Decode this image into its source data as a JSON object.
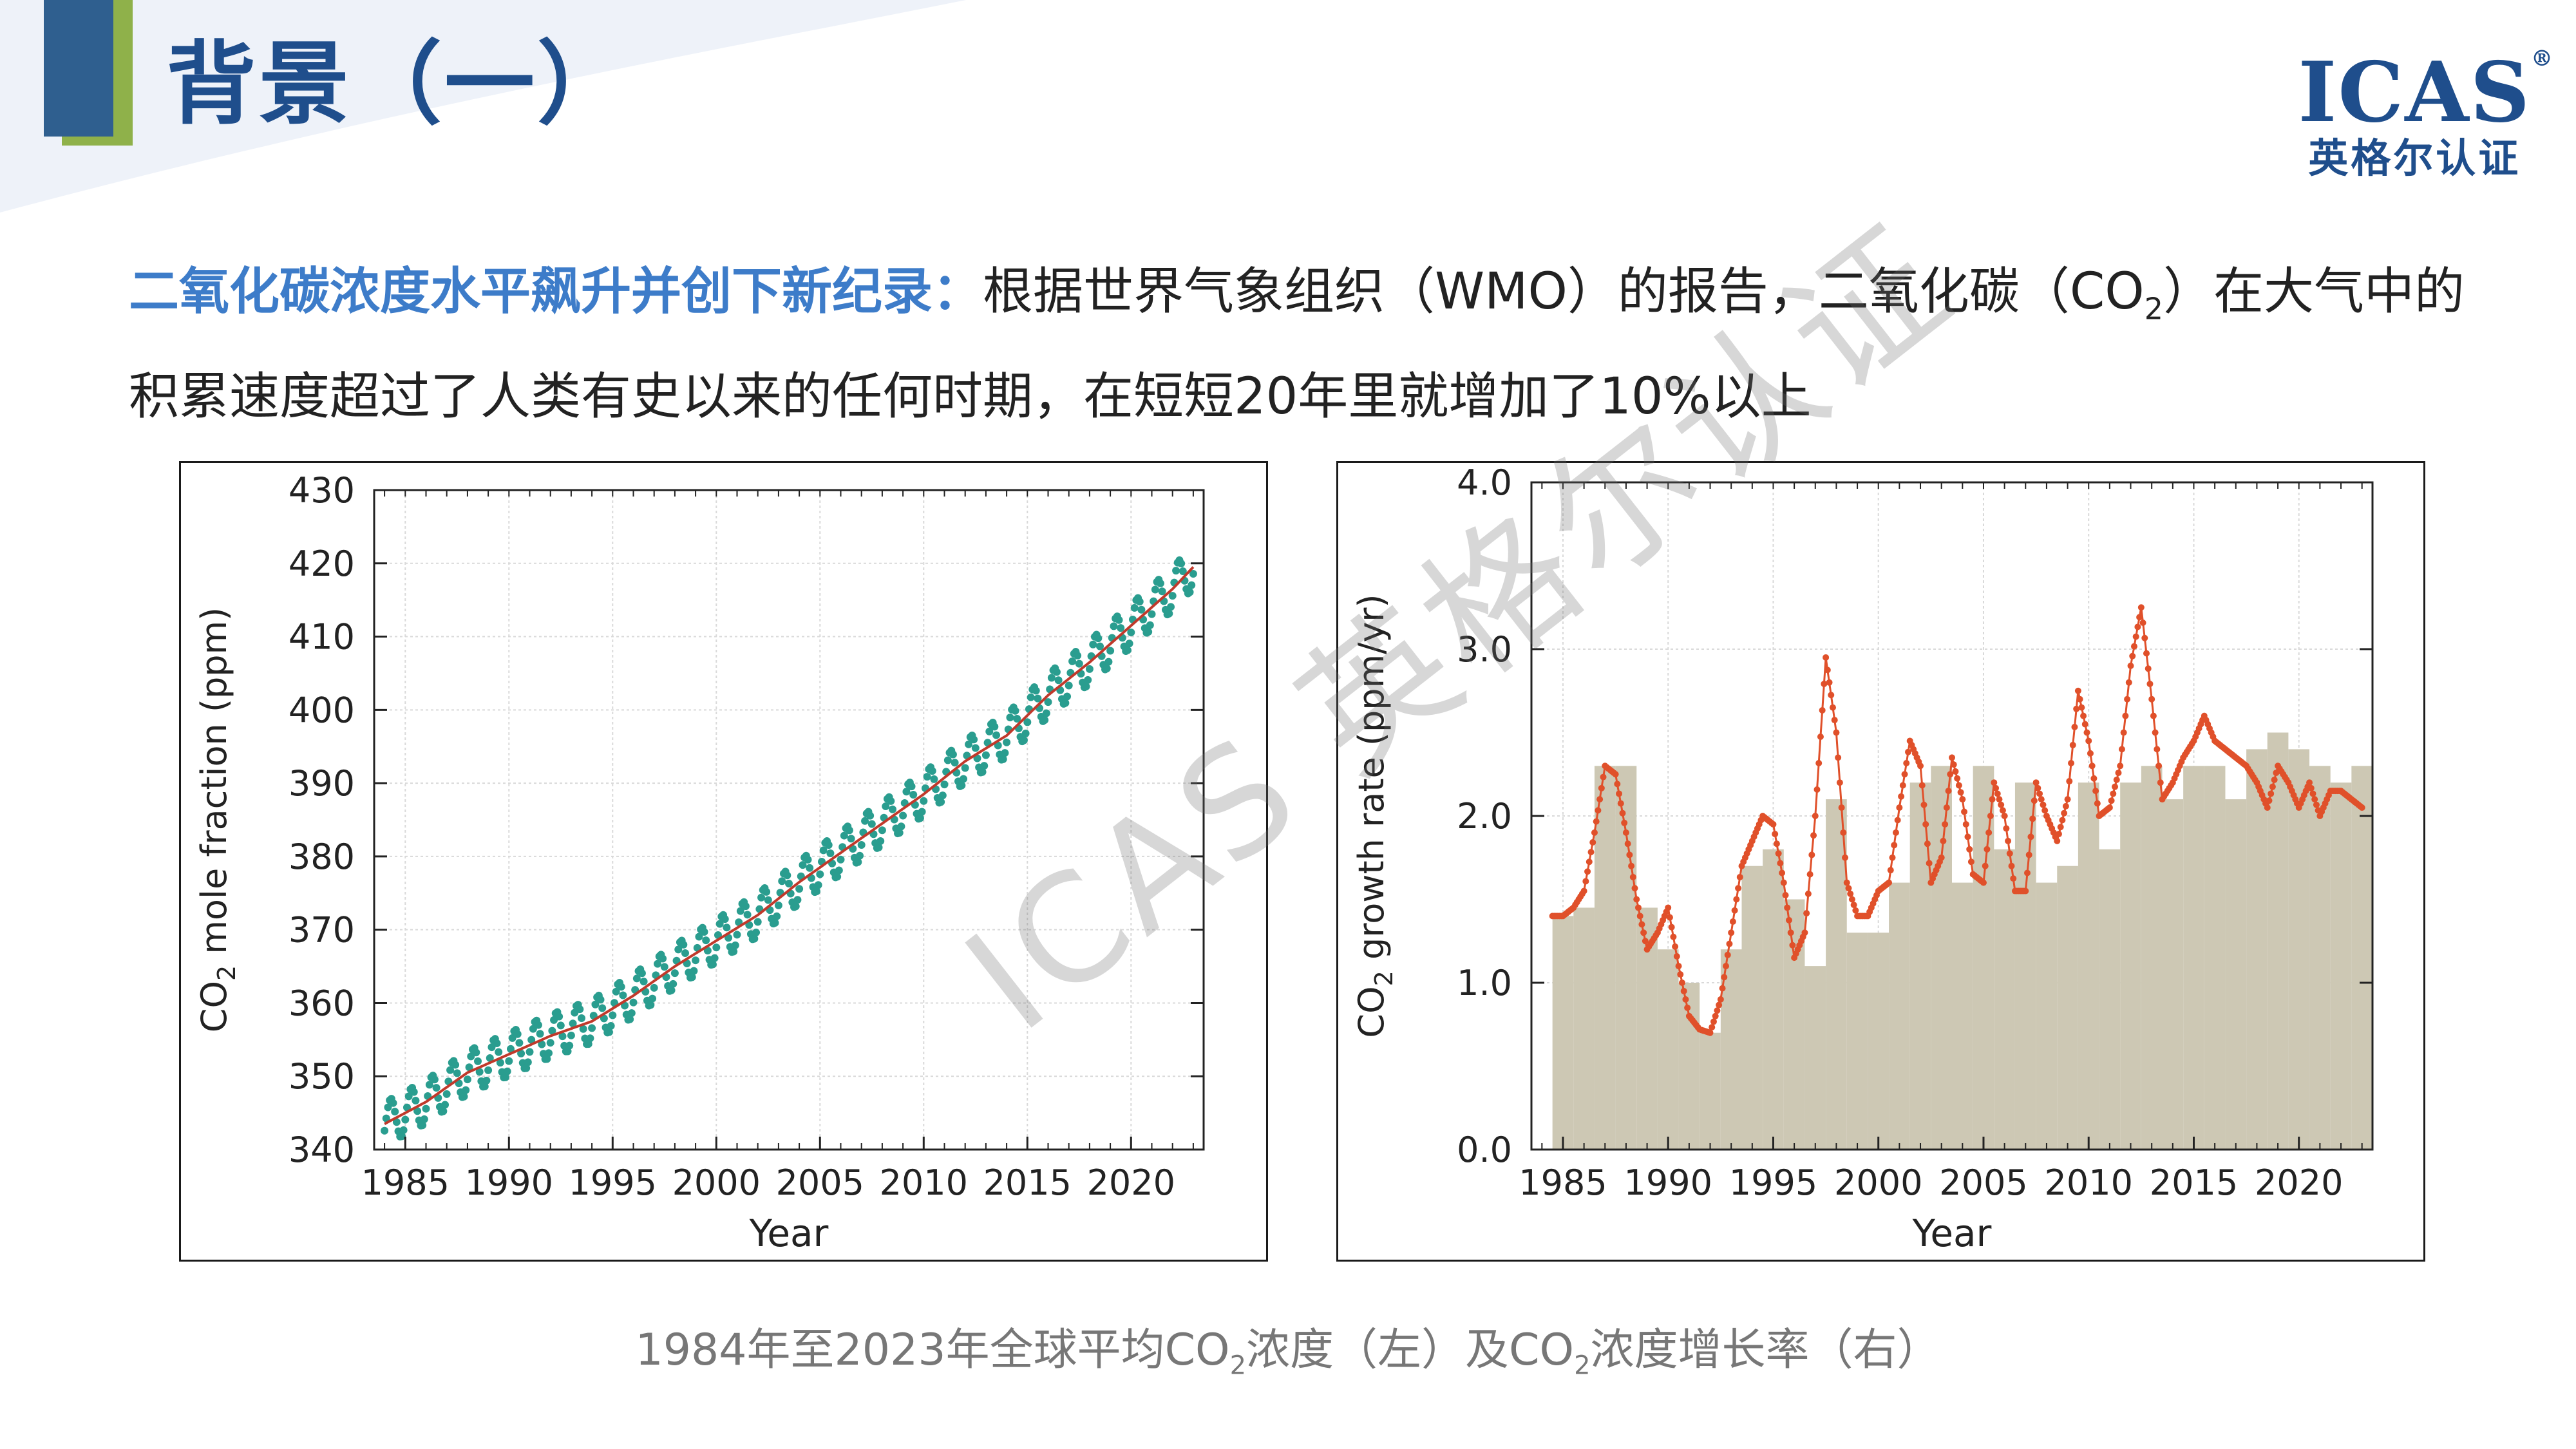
{
  "header": {
    "title": "背景（一）"
  },
  "logo": {
    "mark": "ICAS",
    "registered": "®",
    "subtitle": "英格尔认证"
  },
  "intro": {
    "lead": "二氧化碳浓度水平飙升并创下新纪录：",
    "text_before_sub": "根据世界气象组织（WMO）的报告，二氧化碳（CO",
    "sub": "2",
    "text_after_sub": "）在大气中的积累速度超过了人类有史以来的任何时期，在短短20年里就增加了10%以上"
  },
  "caption": {
    "part1": "1984年至2023年全球平均CO",
    "sub1": "2",
    "part2": "浓度（左）及CO",
    "sub2": "2",
    "part3": "浓度增长率（右）"
  },
  "watermark": "ICAS 英格尔认证",
  "colors": {
    "title_blue": "#1f4e8c",
    "lead_blue": "#3d7cc9",
    "accent_green": "#8fb14a",
    "scatter_teal": "#2a9d8f",
    "trend_red": "#c0392b",
    "growth_orange": "#e0502a",
    "bar_tan": "#cdc8b4"
  },
  "chart_data": [
    {
      "type": "scatter",
      "xlabel": "Year",
      "ylabel_main": "CO",
      "ylabel_sub": "2",
      "ylabel_rest": " mole fraction (ppm)",
      "xlim": [
        1983.5,
        2023.5
      ],
      "ylim": [
        340,
        430
      ],
      "xticks": [
        1985,
        1990,
        1995,
        2000,
        2005,
        2010,
        2015,
        2020
      ],
      "xtick_labels": [
        "1985",
        "1990",
        "1995",
        "2000",
        "2005",
        "2010",
        "2015",
        "2020"
      ],
      "yticks": [
        340,
        350,
        360,
        370,
        380,
        390,
        400,
        410,
        420,
        430
      ],
      "ytick_labels": [
        "340",
        "350",
        "360",
        "370",
        "380",
        "390",
        "400",
        "410",
        "420",
        "430"
      ],
      "grid": true,
      "series": [
        {
          "kind": "monthly-points",
          "seasonal_amplitude_ppm": 3.0,
          "annual_mean_x": [
            1984,
            1986,
            1988,
            1990,
            1992,
            1994,
            1996,
            1998,
            2000,
            2002,
            2004,
            2006,
            2008,
            2010,
            2012,
            2014,
            2016,
            2018,
            2020,
            2022,
            2023
          ],
          "annual_mean_y": [
            343.5,
            346.5,
            350.5,
            353.0,
            355.5,
            357.5,
            361.0,
            365.0,
            368.5,
            372.0,
            376.5,
            380.5,
            384.5,
            388.5,
            393.0,
            396.5,
            402.0,
            406.5,
            411.5,
            416.5,
            419.5
          ]
        },
        {
          "kind": "trend-line",
          "x": [
            1984,
            1986,
            1988,
            1990,
            1992,
            1994,
            1996,
            1998,
            2000,
            2002,
            2004,
            2006,
            2008,
            2010,
            2012,
            2014,
            2016,
            2018,
            2020,
            2022,
            2023
          ],
          "y": [
            343.5,
            346.5,
            350.5,
            353.0,
            355.5,
            357.5,
            361.0,
            365.0,
            368.5,
            372.0,
            376.5,
            380.5,
            384.5,
            388.5,
            393.0,
            396.5,
            402.0,
            406.5,
            411.5,
            416.5,
            419.5
          ]
        }
      ]
    },
    {
      "type": "bar",
      "xlabel": "Year",
      "ylabel_main": "CO",
      "ylabel_sub": "2",
      "ylabel_rest": " growth rate (ppm/yr)",
      "xlim": [
        1983.5,
        2023.5
      ],
      "ylim": [
        0.0,
        4.0
      ],
      "xticks": [
        1985,
        1990,
        1995,
        2000,
        2005,
        2010,
        2015,
        2020
      ],
      "xtick_labels": [
        "1985",
        "1990",
        "1995",
        "2000",
        "2005",
        "2010",
        "2015",
        "2020"
      ],
      "yticks": [
        0.0,
        1.0,
        2.0,
        3.0,
        4.0
      ],
      "ytick_labels": [
        "0.0",
        "1.0",
        "2.0",
        "3.0",
        "4.0"
      ],
      "grid": true,
      "annual_bars": {
        "years": [
          1985,
          1986,
          1987,
          1988,
          1989,
          1990,
          1991,
          1992,
          1993,
          1994,
          1995,
          1996,
          1997,
          1998,
          1999,
          2000,
          2001,
          2002,
          2003,
          2004,
          2005,
          2006,
          2007,
          2008,
          2009,
          2010,
          2011,
          2012,
          2013,
          2014,
          2015,
          2016,
          2017,
          2018,
          2019,
          2020,
          2021,
          2022,
          2023
        ],
        "values": [
          1.4,
          1.45,
          2.3,
          2.3,
          1.45,
          1.2,
          1.0,
          0.7,
          1.2,
          1.7,
          1.8,
          1.5,
          1.1,
          2.1,
          1.3,
          1.3,
          1.6,
          2.2,
          2.3,
          1.6,
          2.3,
          1.8,
          2.2,
          1.6,
          1.7,
          2.2,
          1.8,
          2.2,
          2.3,
          2.1,
          2.3,
          2.3,
          2.1,
          2.4,
          2.5,
          2.4,
          2.3,
          2.2,
          2.3
        ]
      },
      "monthly_curve": {
        "x": [
          1984.5,
          1985.0,
          1985.5,
          1986.0,
          1986.5,
          1987.0,
          1987.5,
          1988.0,
          1988.5,
          1989.0,
          1989.5,
          1990.0,
          1990.5,
          1991.0,
          1991.5,
          1992.0,
          1992.5,
          1993.0,
          1993.5,
          1994.0,
          1994.5,
          1995.0,
          1995.5,
          1996.0,
          1996.5,
          1997.0,
          1997.5,
          1998.0,
          1998.5,
          1999.0,
          1999.5,
          2000.0,
          2000.5,
          2001.0,
          2001.5,
          2002.0,
          2002.5,
          2003.0,
          2003.5,
          2004.0,
          2004.5,
          2005.0,
          2005.5,
          2006.0,
          2006.5,
          2007.0,
          2007.5,
          2008.0,
          2008.5,
          2009.0,
          2009.5,
          2010.0,
          2010.5,
          2011.0,
          2011.5,
          2012.0,
          2012.5,
          2013.0,
          2013.5,
          2014.0,
          2014.5,
          2015.0,
          2015.5,
          2016.0,
          2016.5,
          2017.0,
          2017.5,
          2018.0,
          2018.5,
          2019.0,
          2019.5,
          2020.0,
          2020.5,
          2021.0,
          2021.5,
          2022.0,
          2022.5,
          2023.0
        ],
        "y": [
          1.4,
          1.4,
          1.45,
          1.55,
          1.9,
          2.3,
          2.25,
          1.9,
          1.5,
          1.2,
          1.3,
          1.45,
          1.1,
          0.8,
          0.72,
          0.7,
          0.9,
          1.3,
          1.7,
          1.85,
          2.0,
          1.95,
          1.6,
          1.15,
          1.3,
          2.0,
          2.95,
          2.5,
          1.6,
          1.4,
          1.4,
          1.55,
          1.6,
          2.05,
          2.45,
          2.3,
          1.6,
          1.75,
          2.35,
          2.1,
          1.65,
          1.6,
          2.2,
          2.0,
          1.55,
          1.55,
          2.2,
          2.0,
          1.85,
          2.1,
          2.75,
          2.45,
          2.0,
          2.05,
          2.3,
          2.9,
          3.25,
          2.7,
          2.1,
          2.2,
          2.35,
          2.45,
          2.6,
          2.45,
          2.4,
          2.35,
          2.3,
          2.2,
          2.05,
          2.3,
          2.2,
          2.05,
          2.2,
          2.0,
          2.15,
          2.15,
          2.1,
          2.05
        ]
      }
    }
  ]
}
